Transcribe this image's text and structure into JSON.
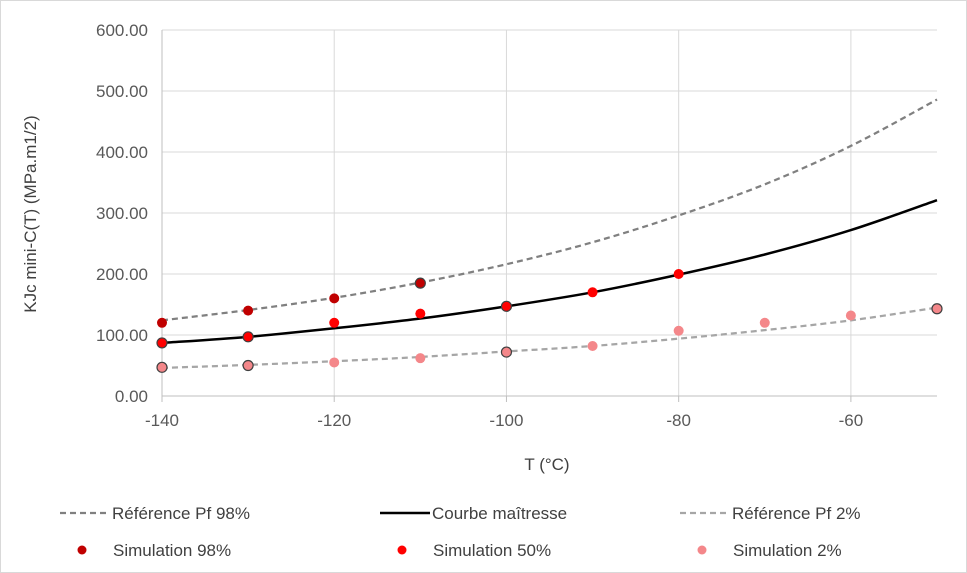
{
  "chart_data": {
    "type": "scatter",
    "xlabel": "T (°C)",
    "ylabel": "KJc mini-C(T)  (MPa.m1/2)",
    "xlim": [
      -140,
      -50
    ],
    "ylim": [
      0,
      600
    ],
    "xticks": [
      -140,
      -120,
      -100,
      -80,
      -60
    ],
    "xtick_labels": [
      "-140",
      "-120",
      "-100",
      "-80",
      "-60"
    ],
    "yticks": [
      0,
      100,
      200,
      300,
      400,
      500,
      600
    ],
    "ytick_labels": [
      "0.00",
      "100.00",
      "200.00",
      "300.00",
      "400.00",
      "500.00",
      "600.00"
    ],
    "grid": true,
    "legend_position": "bottom",
    "series": [
      {
        "name": "Référence Pf 98%",
        "kind": "line",
        "style": "dashed",
        "color": "#808080",
        "x": [
          -140,
          -130,
          -120,
          -110,
          -100,
          -90,
          -80,
          -70,
          -60,
          -50
        ],
        "y": [
          124,
          141,
          161,
          186,
          216,
          252,
          296,
          347,
          410,
          486
        ]
      },
      {
        "name": "Courbe maîtresse",
        "kind": "line",
        "style": "solid",
        "color": "#000000",
        "x": [
          -140,
          -130,
          -120,
          -110,
          -100,
          -90,
          -80,
          -70,
          -60,
          -50
        ],
        "y": [
          87,
          97,
          111,
          127,
          147,
          170,
          199,
          232,
          272,
          321
        ]
      },
      {
        "name": "Référence Pf 2%",
        "kind": "line",
        "style": "dashed",
        "color": "#a6a6a6",
        "x": [
          -140,
          -130,
          -120,
          -110,
          -100,
          -90,
          -80,
          -70,
          -60,
          -50
        ],
        "y": [
          46,
          51,
          57,
          64,
          73,
          82,
          94,
          108,
          124,
          145
        ]
      },
      {
        "name": "Simulation 98%",
        "kind": "marker",
        "color": "#c00000",
        "x": [
          -140,
          -130,
          -120,
          -110
        ],
        "y": [
          120,
          140,
          160,
          185
        ]
      },
      {
        "name": "Simulation 50%",
        "kind": "marker",
        "color": "#ff0000",
        "x": [
          -140,
          -130,
          -120,
          -110,
          -100,
          -90,
          -80
        ],
        "y": [
          87,
          97,
          120,
          135,
          147,
          170,
          200
        ]
      },
      {
        "name": "Simulation 2%",
        "kind": "marker",
        "color": "#f4878a",
        "x": [
          -140,
          -130,
          -120,
          -110,
          -100,
          -90,
          -80,
          -70,
          -60,
          -50
        ],
        "y": [
          47,
          50,
          55,
          62,
          72,
          82,
          107,
          120,
          132,
          143
        ]
      }
    ]
  }
}
